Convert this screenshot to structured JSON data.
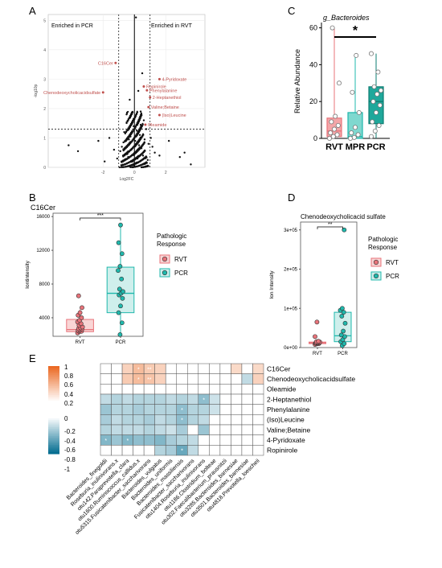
{
  "panel_letters": [
    "A",
    "B",
    "C",
    "D",
    "E"
  ],
  "chart_data": [
    {
      "panel": "A",
      "type": "scatter",
      "title": "",
      "xlabel": "Log2FC",
      "ylabel": "-log10p",
      "xlim": [
        -5.5,
        4.5
      ],
      "ylim": [
        0,
        5.2
      ],
      "xticks": [
        -2,
        0,
        2
      ],
      "yticks": [
        0,
        1,
        2,
        3,
        4,
        5
      ],
      "xticklabels": [
        "-2",
        "0",
        "2"
      ],
      "yticklabels": [
        "0",
        "1",
        "2",
        "3",
        "4",
        "5"
      ],
      "grid": true,
      "hline": 1.3,
      "vlines": [
        -1,
        1
      ],
      "region_labels": [
        "Enriched in PCR",
        "Enriched in RVT"
      ],
      "highlight_color": "#c0504d",
      "labeled_points": [
        {
          "label": "C16Cer",
          "x": -1.2,
          "y": 3.55
        },
        {
          "label": "Chenodeoxycholicacidsulfate",
          "x": -2.0,
          "y": 2.55
        },
        {
          "label": "4-Pyridoxate",
          "x": 1.6,
          "y": 3.0
        },
        {
          "label": "Ropinirole",
          "x": 0.6,
          "y": 2.75
        },
        {
          "label": "Phenylalanine",
          "x": 0.8,
          "y": 2.62
        },
        {
          "label": "2-Heptanethiol",
          "x": 1.0,
          "y": 2.38
        },
        {
          "label": "Valine;Betaine",
          "x": 0.9,
          "y": 2.05
        },
        {
          "label": "(Iso)Leucine",
          "x": 1.6,
          "y": 1.78
        },
        {
          "label": "Oleamide",
          "x": 0.7,
          "y": 1.45
        }
      ],
      "points": [
        [
          0.1,
          5.1
        ],
        [
          -3.6,
          0.55
        ],
        [
          -4.2,
          0.75
        ],
        [
          3.6,
          0.1
        ],
        [
          2.9,
          0.35
        ],
        [
          3.2,
          0.5
        ],
        [
          -2.3,
          0.9
        ],
        [
          -1.6,
          1.0
        ],
        [
          -1.9,
          0.2
        ],
        [
          1.6,
          0.4
        ],
        [
          2.2,
          0.9
        ],
        [
          -0.5,
          1.8
        ],
        [
          0.4,
          1.9
        ],
        [
          -0.3,
          2.3
        ],
        [
          0.25,
          2.6
        ],
        [
          0.5,
          3.2
        ],
        [
          -0.15,
          1.5
        ],
        [
          0.6,
          1.6
        ],
        [
          -0.8,
          0.7
        ],
        [
          0.9,
          0.8
        ],
        [
          -1.1,
          0.3
        ],
        [
          1.3,
          0.5
        ],
        [
          -0.6,
          0.1
        ],
        [
          0.7,
          0.15
        ],
        [
          -0.35,
          0.95
        ],
        [
          0.35,
          1.1
        ],
        [
          -0.45,
          0.45
        ],
        [
          0.55,
          0.4
        ],
        [
          0.15,
          1.25
        ],
        [
          -0.2,
          0.6
        ],
        [
          0.05,
          0.9
        ],
        [
          0.2,
          0.3
        ],
        [
          -0.1,
          0.2
        ],
        [
          -0.65,
          1.2
        ],
        [
          0.75,
          1.3
        ],
        [
          1.05,
          1.0
        ],
        [
          -0.9,
          0.55
        ],
        [
          0.45,
          0.65
        ],
        [
          -0.25,
          1.05
        ],
        [
          0.3,
          0.75
        ],
        [
          -0.4,
          0.35
        ],
        [
          0.1,
          0.5
        ],
        [
          0.65,
          0.95
        ],
        [
          -0.7,
          0.85
        ],
        [
          0.85,
          0.25
        ],
        [
          1.15,
          0.7
        ],
        [
          -1.3,
          0.6
        ],
        [
          0.0,
          0.05
        ],
        [
          -0.05,
          1.4
        ],
        [
          0.4,
          1.45
        ]
      ]
    },
    {
      "panel": "B",
      "type": "box",
      "title": "C16Cer",
      "xlabel": "",
      "ylabel": "Iontintensity",
      "categories": [
        "RVT",
        "PCR"
      ],
      "ylim": [
        1800,
        16400
      ],
      "yticks": [
        4000,
        8000,
        12000,
        16000
      ],
      "yticklabels": [
        "4000",
        "8000",
        "12000",
        "16000"
      ],
      "significance": "***",
      "legend_title": [
        "Pathologic",
        "Response"
      ],
      "series": [
        {
          "name": "RVT",
          "color": "#e8737a",
          "fill": "#f9d5d5",
          "box": {
            "min": 2100,
            "q1": 2350,
            "median": 2600,
            "q3": 3800,
            "max": 5000
          },
          "points": [
            2200,
            2350,
            2400,
            2500,
            2550,
            2650,
            2700,
            2800,
            2900,
            3100,
            3300,
            3500,
            3700,
            4000,
            4300,
            4600,
            5200,
            6600
          ]
        },
        {
          "name": "PCR",
          "color": "#1fb8ac",
          "fill": "#cfefec",
          "box": {
            "min": 2000,
            "q1": 4600,
            "median": 6900,
            "q3": 10000,
            "max": 15000
          },
          "points": [
            2000,
            3400,
            4600,
            5400,
            6300,
            6700,
            6900,
            7100,
            7400,
            8600,
            9600,
            10100,
            11600,
            12900,
            15000
          ]
        }
      ]
    },
    {
      "panel": "C",
      "type": "box",
      "title": "g_Bacteroides",
      "xlabel": "",
      "ylabel": "Relative Abundance",
      "categories": [
        "RVT",
        "MPR",
        "PCR"
      ],
      "ylim": [
        0,
        62
      ],
      "yticks": [
        0,
        20,
        40,
        60
      ],
      "yticklabels": [
        "0",
        "20",
        "40",
        "60"
      ],
      "significance": "*",
      "series": [
        {
          "name": "RVT",
          "color": "#e8737a",
          "fill": "#f3a6a8",
          "box": {
            "min": 0,
            "q1": 1,
            "median": 4,
            "q3": 11,
            "max": 60
          },
          "points": [
            0,
            1,
            2,
            3,
            5,
            7,
            9,
            12,
            30,
            60
          ]
        },
        {
          "name": "MPR",
          "color": "#1fb8ac",
          "fill": "#7fd8cf",
          "box": {
            "min": 0,
            "q1": 0,
            "median": 1,
            "q3": 14,
            "max": 45
          },
          "points": [
            0,
            0.5,
            2,
            3,
            6,
            14,
            25,
            45
          ]
        },
        {
          "name": "PCR",
          "color": "#0e7d72",
          "fill": "#1fa89b",
          "box": {
            "min": 0,
            "q1": 8,
            "median": 20,
            "q3": 28,
            "max": 46
          },
          "points": [
            1,
            4,
            7,
            9,
            14,
            18,
            20,
            24,
            26,
            28,
            36,
            46
          ]
        }
      ]
    },
    {
      "panel": "D",
      "type": "box",
      "title": "Chenodeoxycholicacid sulfate",
      "xlabel": "",
      "ylabel": "Ion Intensity",
      "categories": [
        "RVT",
        "PCR"
      ],
      "ylim": [
        0,
        320000
      ],
      "yticks": [
        0,
        100000,
        200000,
        300000
      ],
      "yticklabels": [
        "0e+00",
        "1e+05",
        "2e+05",
        "3e+05"
      ],
      "significance": "**",
      "legend_title": [
        "Pathologic",
        "Response"
      ],
      "series": [
        {
          "name": "RVT",
          "color": "#e8737a",
          "fill": "#f9d5d5",
          "box": {
            "min": 8000,
            "q1": 10000,
            "median": 12000,
            "q3": 14000,
            "max": 16000
          },
          "points": [
            8000,
            9500,
            10000,
            11000,
            11500,
            12000,
            12500,
            13000,
            14000,
            15000,
            16000,
            28000,
            65000
          ]
        },
        {
          "name": "PCR",
          "color": "#1fb8ac",
          "fill": "#cfefec",
          "box": {
            "min": 5000,
            "q1": 15000,
            "median": 30000,
            "q3": 90000,
            "max": 100000
          },
          "points": [
            5000,
            10000,
            15000,
            20000,
            28000,
            32000,
            42000,
            62000,
            80000,
            90000,
            95000,
            100000,
            300000
          ]
        }
      ]
    },
    {
      "panel": "E",
      "type": "heatmap",
      "title": "",
      "legend_ticks": [
        "1",
        "0.8",
        "0.6",
        "0.4",
        "0.2",
        "0",
        "-0.2",
        "-0.4",
        "-0.6",
        "-0.8",
        "-1"
      ],
      "rows": [
        "C16Cer",
        "Chenodeoxycholicacidsulfate",
        "Oleamide",
        "2-Heptanethiol",
        "Phenylalanine",
        "(Iso)Leucine",
        "Valine;Betaine",
        "4-Pyridoxate",
        "Ropinirole"
      ],
      "columns": [
        "Bacteroides_finegoldii",
        "Roseburia_inulinivorans.x",
        "otu142.Paraprevotella_clara",
        "otu1600.Ruminococcus_callidus.x",
        "otu5315.Fusicatenibacter_saccharivorans",
        "Bacteroides_vulgatus",
        "Bacteroides_uniformis",
        "Bacteroides_massiliensis",
        "Fusicatenibacter_saccharivorans",
        "otu1404.Roseburia_inulinivorans",
        "otu1186.Clostridium_bolteae",
        "otu302.Faecalibacterium_prausnitzii",
        "otu3285.Bacteroides_barnesiae",
        "otu3501.Bacteroides_barnesiae",
        "otu4818.Prevotella_loescheii"
      ],
      "values": [
        [
          0,
          0,
          0.3,
          0.45,
          0.35,
          0.3,
          0,
          0,
          0,
          0,
          0,
          0,
          0.25,
          0,
          0.25
        ],
        [
          0,
          0,
          0.35,
          0.45,
          0.4,
          0.3,
          0,
          0,
          0,
          0,
          0,
          0,
          0,
          -0.25,
          0.3
        ],
        [
          0,
          0,
          0,
          0,
          0,
          0,
          0,
          0,
          0,
          0,
          0,
          0,
          0,
          0,
          0
        ],
        [
          -0.25,
          -0.3,
          -0.25,
          -0.3,
          -0.3,
          -0.3,
          -0.25,
          -0.3,
          -0.25,
          -0.45,
          -0.2,
          0,
          0,
          0,
          0
        ],
        [
          -0.4,
          -0.3,
          -0.3,
          -0.35,
          -0.3,
          -0.3,
          -0.3,
          -0.45,
          -0.3,
          -0.3,
          -0.2,
          0,
          0,
          0,
          0
        ],
        [
          -0.35,
          -0.25,
          -0.3,
          -0.3,
          -0.35,
          -0.25,
          -0.3,
          -0.45,
          -0.3,
          -0.25,
          0,
          0,
          0,
          0,
          0
        ],
        [
          -0.3,
          -0.25,
          -0.25,
          -0.25,
          -0.3,
          -0.25,
          -0.2,
          -0.35,
          0,
          -0.4,
          0,
          0,
          0,
          0,
          0
        ],
        [
          -0.5,
          -0.4,
          -0.5,
          -0.45,
          -0.45,
          -0.5,
          -0.35,
          -0.3,
          -0.25,
          0,
          0,
          0,
          0,
          0,
          0
        ],
        [
          0,
          0,
          0,
          0,
          0,
          -0.3,
          -0.35,
          -0.6,
          -0.25,
          0,
          0,
          0,
          0,
          0,
          0
        ]
      ],
      "stars": [
        {
          "row": 0,
          "col": 3,
          "text": "*"
        },
        {
          "row": 0,
          "col": 4,
          "text": "**"
        },
        {
          "row": 1,
          "col": 3,
          "text": "*"
        },
        {
          "row": 1,
          "col": 4,
          "text": "**"
        },
        {
          "row": 3,
          "col": 9,
          "text": "*"
        },
        {
          "row": 4,
          "col": 7,
          "text": "*"
        },
        {
          "row": 5,
          "col": 7,
          "text": "*"
        },
        {
          "row": 7,
          "col": 0,
          "text": "*"
        },
        {
          "row": 7,
          "col": 2,
          "text": "*"
        },
        {
          "row": 8,
          "col": 7,
          "text": "*"
        }
      ]
    }
  ]
}
